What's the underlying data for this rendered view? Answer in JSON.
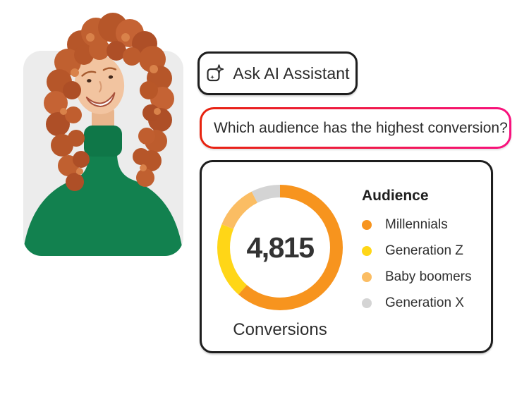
{
  "page": {
    "background": "#FFFFFF"
  },
  "photo_card": {
    "background": "#ECECEC",
    "description": "Smiling woman with curly red hair wearing a green turtleneck"
  },
  "assistant_button": {
    "label": "Ask AI Assistant",
    "icon": "ai-sparkle-icon",
    "border_color": "#1E1E1E"
  },
  "query_input": {
    "value": "Which audience has the highest conversion?",
    "caret_visible": true,
    "border_gradient": [
      "#E7230E",
      "#F8117E"
    ]
  },
  "chart_card": {
    "border_color": "#1E1E1E"
  },
  "chart_data": {
    "type": "pie",
    "variant": "donut",
    "title": "Audience",
    "center_value": "4,815",
    "center_label": "Conversions",
    "legend_position": "right",
    "segments": [
      {
        "label": "Millennials",
        "color": "#F7941E",
        "pct": 61.5
      },
      {
        "label": "Generation Z",
        "color": "#FFD617",
        "pct": 19.5
      },
      {
        "label": "Baby boomers",
        "color": "#FBBD63",
        "pct": 11.5
      },
      {
        "label": "Generation X",
        "color": "#D4D4D4",
        "pct": 7.5
      }
    ]
  }
}
